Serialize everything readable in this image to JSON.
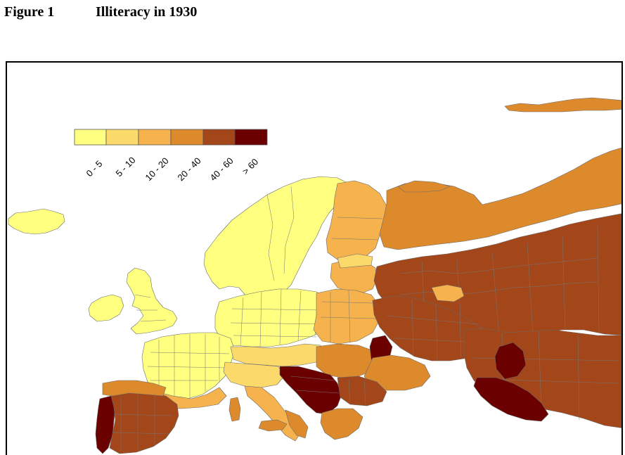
{
  "figure": {
    "number": "Figure 1",
    "title": "Illiteracy in 1930"
  },
  "legend": {
    "classes": [
      {
        "label": "0 - 5",
        "color": "#ffff80"
      },
      {
        "label": "5 - 10",
        "color": "#fcd96b"
      },
      {
        "label": "10 - 20",
        "color": "#f6b24c"
      },
      {
        "label": "20 - 40",
        "color": "#dd8a2d"
      },
      {
        "label": "40 - 60",
        "color": "#a3461a"
      },
      {
        "label": "> 60",
        "color": "#6a0000"
      }
    ]
  },
  "map": {
    "subject": "choropleth of European regions",
    "regions": [
      {
        "name": "Iceland",
        "class": "0 - 5"
      },
      {
        "name": "Ireland",
        "class": "0 - 5"
      },
      {
        "name": "Great Britain",
        "class": "0 - 5"
      },
      {
        "name": "Scandinavia",
        "class": "0 - 5"
      },
      {
        "name": "Finland",
        "class": "10 - 20"
      },
      {
        "name": "Germany",
        "class": "0 - 5"
      },
      {
        "name": "France",
        "class": "0 - 5"
      },
      {
        "name": "Northern Russia",
        "class": "20 - 40"
      },
      {
        "name": "Central Russia",
        "class": "40 - 60"
      },
      {
        "name": "Portugal",
        "class": "> 60"
      },
      {
        "name": "Spain",
        "class": "40 - 60"
      },
      {
        "name": "Italy",
        "class": "10 - 20"
      },
      {
        "name": "Balkans",
        "class": "> 60"
      },
      {
        "name": "Caucasus",
        "class": "> 60"
      }
    ]
  }
}
